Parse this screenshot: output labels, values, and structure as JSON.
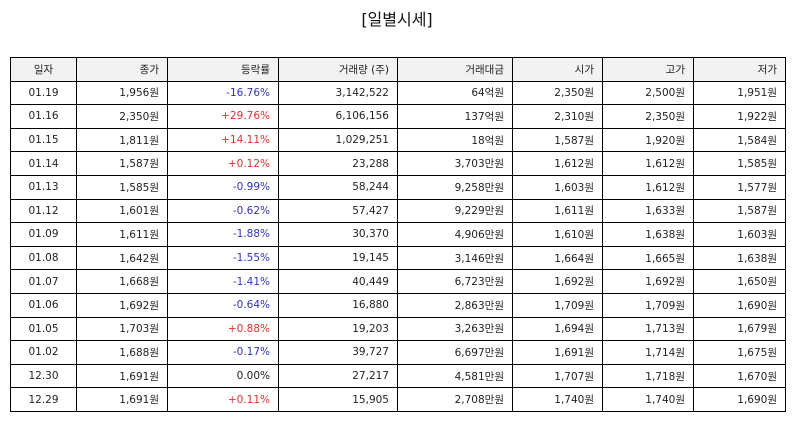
{
  "title": "[일별시세]",
  "colors": {
    "up": "#e03030",
    "down": "#3333bb",
    "flat": "#222222",
    "header_bg": "#f2f2f2",
    "border": "#000000"
  },
  "table": {
    "headers": [
      "일자",
      "종가",
      "등락률",
      "거래량 (주)",
      "거래대금",
      "시가",
      "고가",
      "저가"
    ],
    "rows": [
      {
        "date": "01.19",
        "close": "1,956원",
        "change": "-16.76%",
        "dir": "down",
        "volume": "3,142,522",
        "amount": "64억원",
        "open": "2,350원",
        "high": "2,500원",
        "low": "1,951원"
      },
      {
        "date": "01.16",
        "close": "2,350원",
        "change": "+29.76%",
        "dir": "up",
        "volume": "6,106,156",
        "amount": "137억원",
        "open": "2,310원",
        "high": "2,350원",
        "low": "1,922원"
      },
      {
        "date": "01.15",
        "close": "1,811원",
        "change": "+14.11%",
        "dir": "up",
        "volume": "1,029,251",
        "amount": "18억원",
        "open": "1,587원",
        "high": "1,920원",
        "low": "1,584원"
      },
      {
        "date": "01.14",
        "close": "1,587원",
        "change": "+0.12%",
        "dir": "up",
        "volume": "23,288",
        "amount": "3,703만원",
        "open": "1,612원",
        "high": "1,612원",
        "low": "1,585원"
      },
      {
        "date": "01.13",
        "close": "1,585원",
        "change": "-0.99%",
        "dir": "down",
        "volume": "58,244",
        "amount": "9,258만원",
        "open": "1,603원",
        "high": "1,612원",
        "low": "1,577원"
      },
      {
        "date": "01.12",
        "close": "1,601원",
        "change": "-0.62%",
        "dir": "down",
        "volume": "57,427",
        "amount": "9,229만원",
        "open": "1,611원",
        "high": "1,633원",
        "low": "1,587원"
      },
      {
        "date": "01.09",
        "close": "1,611원",
        "change": "-1.88%",
        "dir": "down",
        "volume": "30,370",
        "amount": "4,906만원",
        "open": "1,610원",
        "high": "1,638원",
        "low": "1,603원"
      },
      {
        "date": "01.08",
        "close": "1,642원",
        "change": "-1.55%",
        "dir": "down",
        "volume": "19,145",
        "amount": "3,146만원",
        "open": "1,664원",
        "high": "1,665원",
        "low": "1,638원"
      },
      {
        "date": "01.07",
        "close": "1,668원",
        "change": "-1.41%",
        "dir": "down",
        "volume": "40,449",
        "amount": "6,723만원",
        "open": "1,692원",
        "high": "1,692원",
        "low": "1,650원"
      },
      {
        "date": "01.06",
        "close": "1,692원",
        "change": "-0.64%",
        "dir": "down",
        "volume": "16,880",
        "amount": "2,863만원",
        "open": "1,709원",
        "high": "1,709원",
        "low": "1,690원"
      },
      {
        "date": "01.05",
        "close": "1,703원",
        "change": "+0.88%",
        "dir": "up",
        "volume": "19,203",
        "amount": "3,263만원",
        "open": "1,694원",
        "high": "1,713원",
        "low": "1,679원"
      },
      {
        "date": "01.02",
        "close": "1,688원",
        "change": "-0.17%",
        "dir": "down",
        "volume": "39,727",
        "amount": "6,697만원",
        "open": "1,691원",
        "high": "1,714원",
        "low": "1,675원"
      },
      {
        "date": "12.30",
        "close": "1,691원",
        "change": "0.00%",
        "dir": "flat",
        "volume": "27,217",
        "amount": "4,581만원",
        "open": "1,707원",
        "high": "1,718원",
        "low": "1,670원"
      },
      {
        "date": "12.29",
        "close": "1,691원",
        "change": "+0.11%",
        "dir": "up",
        "volume": "15,905",
        "amount": "2,708만원",
        "open": "1,740원",
        "high": "1,740원",
        "low": "1,690원"
      }
    ]
  }
}
